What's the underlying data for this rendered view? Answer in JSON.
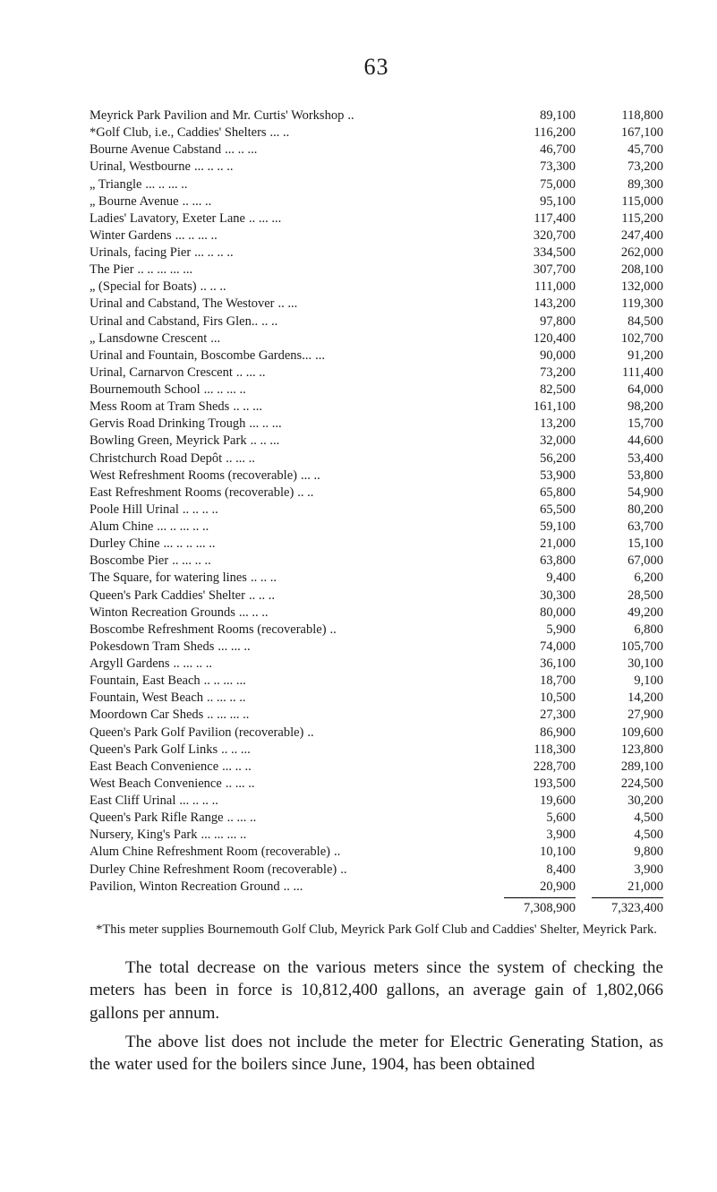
{
  "page_number": "63",
  "columns": {
    "v1_width": 80,
    "v2_width": 80
  },
  "entries": [
    {
      "label": "Meyrick Park Pavilion and Mr. Curtis' Workshop",
      "dots": "..",
      "v1": "89,100",
      "v2": "118,800"
    },
    {
      "label": "*Golf Club, i.e., Caddies' Shelters",
      "dots": "...     ..",
      "v1": "116,200",
      "v2": "167,100"
    },
    {
      "label": "Bourne Avenue Cabstand",
      "dots": "...     ..     ...",
      "v1": "46,700",
      "v2": "45,700"
    },
    {
      "label": "Urinal, Westbourne",
      "dots": "...     ..     ..     ..",
      "v1": "73,300",
      "v2": "73,200"
    },
    {
      "label": "   „     Triangle",
      "dots": "...     ..     ...     ..",
      "v1": "75,000",
      "v2": "89,300"
    },
    {
      "label": "   „     Bourne Avenue",
      "dots": "..     ...     ..",
      "v1": "95,100",
      "v2": "115,000"
    },
    {
      "label": "Ladies' Lavatory, Exeter Lane",
      "dots": "..     ...     ...",
      "v1": "117,400",
      "v2": "115,200"
    },
    {
      "label": "Winter Gardens",
      "dots": "...     ..     ...     ..",
      "v1": "320,700",
      "v2": "247,400"
    },
    {
      "label": "Urinals, facing Pier",
      "dots": "...     ..     ..     ..",
      "v1": "334,500",
      "v2": "262,000"
    },
    {
      "label": "The Pier",
      "dots": "..     ..     ...     ...     ...",
      "v1": "307,700",
      "v2": "208,100"
    },
    {
      "label": "   „     (Special for Boats)",
      "dots": "..     ..     ..",
      "v1": "111,000",
      "v2": "132,000"
    },
    {
      "label": "Urinal and Cabstand, The Westover",
      "dots": "..     ...",
      "v1": "143,200",
      "v2": "119,300"
    },
    {
      "label": "Urinal and Cabstand, Firs Glen..",
      "dots": "..     ..",
      "v1": "97,800",
      "v2": "84,500"
    },
    {
      "label": "   „                    Lansdowne Crescent",
      "dots": "...",
      "v1": "120,400",
      "v2": "102,700"
    },
    {
      "label": "Urinal and Fountain, Boscombe Gardens...",
      "dots": "...",
      "v1": "90,000",
      "v2": "91,200"
    },
    {
      "label": "Urinal, Carnarvon Crescent",
      "dots": "..     ...     ..",
      "v1": "73,200",
      "v2": "111,400"
    },
    {
      "label": "Bournemouth School",
      "dots": "...     ..     ...     ..",
      "v1": "82,500",
      "v2": "64,000"
    },
    {
      "label": "Mess Room at Tram Sheds",
      "dots": "..     ..     ...",
      "v1": "161,100",
      "v2": "98,200"
    },
    {
      "label": "Gervis Road Drinking Trough",
      "dots": "...     ..     ...",
      "v1": "13,200",
      "v2": "15,700"
    },
    {
      "label": "Bowling Green, Meyrick Park",
      "dots": "..     ..     ...",
      "v1": "32,000",
      "v2": "44,600"
    },
    {
      "label": "Christchurch Road Depôt",
      "dots": "..     ...     ..",
      "v1": "56,200",
      "v2": "53,400"
    },
    {
      "label": "West Refreshment Rooms (recoverable)",
      "dots": "...     ..",
      "v1": "53,900",
      "v2": "53,800"
    },
    {
      "label": "East Refreshment Rooms (recoverable)",
      "dots": "..     ..",
      "v1": "65,800",
      "v2": "54,900"
    },
    {
      "label": "Poole Hill Urinal",
      "dots": "..     ..     ..     ..",
      "v1": "65,500",
      "v2": "80,200"
    },
    {
      "label": "Alum Chine",
      "dots": "...     ..     ...     ..     ..",
      "v1": "59,100",
      "v2": "63,700"
    },
    {
      "label": "Durley Chine",
      "dots": "...     ..     ..     ...     ..",
      "v1": "21,000",
      "v2": "15,100"
    },
    {
      "label": "Boscombe Pier",
      "dots": "..     ...     ..     ..",
      "v1": "63,800",
      "v2": "67,000"
    },
    {
      "label": "The Square, for watering lines",
      "dots": "..     ..     ..",
      "v1": "9,400",
      "v2": "6,200"
    },
    {
      "label": "Queen's Park Caddies' Shelter",
      "dots": "..     ..     ..",
      "v1": "30,300",
      "v2": "28,500"
    },
    {
      "label": "Winton Recreation Grounds",
      "dots": "...     ..     ..",
      "v1": "80,000",
      "v2": "49,200"
    },
    {
      "label": "Boscombe Refreshment Rooms (recoverable)",
      "dots": "..",
      "v1": "5,900",
      "v2": "6,800"
    },
    {
      "label": "Pokesdown Tram Sheds",
      "dots": "...     ...     ..",
      "v1": "74,000",
      "v2": "105,700"
    },
    {
      "label": "Argyll Gardens",
      "dots": "..     ...     ..     ..",
      "v1": "36,100",
      "v2": "30,100"
    },
    {
      "label": "Fountain, East Beach",
      "dots": "..     ..     ...     ...",
      "v1": "18,700",
      "v2": "9,100"
    },
    {
      "label": "Fountain, West Beach",
      "dots": "..     ...     ..     ..",
      "v1": "10,500",
      "v2": "14,200"
    },
    {
      "label": "Moordown Car Sheds",
      "dots": "..     ...     ...     ..",
      "v1": "27,300",
      "v2": "27,900"
    },
    {
      "label": "Queen's Park Golf Pavilion (recoverable)",
      "dots": "..",
      "v1": "86,900",
      "v2": "109,600"
    },
    {
      "label": "Queen's Park Golf Links",
      "dots": "..     ..     ...",
      "v1": "118,300",
      "v2": "123,800"
    },
    {
      "label": "East Beach Convenience",
      "dots": "...     ..     ..",
      "v1": "228,700",
      "v2": "289,100"
    },
    {
      "label": "West Beach Convenience",
      "dots": "..     ...     ..",
      "v1": "193,500",
      "v2": "224,500"
    },
    {
      "label": "East Cliff Urinal",
      "dots": "...     ..     ..     ..",
      "v1": "19,600",
      "v2": "30,200"
    },
    {
      "label": "Queen's Park Rifle Range",
      "dots": "..     ...     ..",
      "v1": "5,600",
      "v2": "4,500"
    },
    {
      "label": "Nursery, King's Park",
      "dots": "...     ...     ...     ..",
      "v1": "3,900",
      "v2": "4,500"
    },
    {
      "label": "Alum Chine Refreshment Room (recoverable)",
      "dots": "..",
      "v1": "10,100",
      "v2": "9,800"
    },
    {
      "label": "Durley Chine Refreshment Room (recoverable)",
      "dots": "..",
      "v1": "8,400",
      "v2": "3,900"
    },
    {
      "label": "Pavilion, Winton Recreation Ground",
      "dots": "..     ...",
      "v1": "20,900",
      "v2": "21,000"
    }
  ],
  "totals": {
    "v1": "7,308,900",
    "v2": "7,323,400"
  },
  "footnote": "*This meter supplies Bournemouth Golf Club, Meyrick Park Golf Club and Caddies' Shelter, Meyrick Park.",
  "paragraphs": [
    "The total decrease on the various meters since the system of checking the meters has been in force is 10,812,400 gallons, an average gain of 1,802,066 gallons per annum.",
    "The above list does not include the meter for Electric Generating Station, as the water used for the boilers since June, 1904, has been obtained"
  ]
}
